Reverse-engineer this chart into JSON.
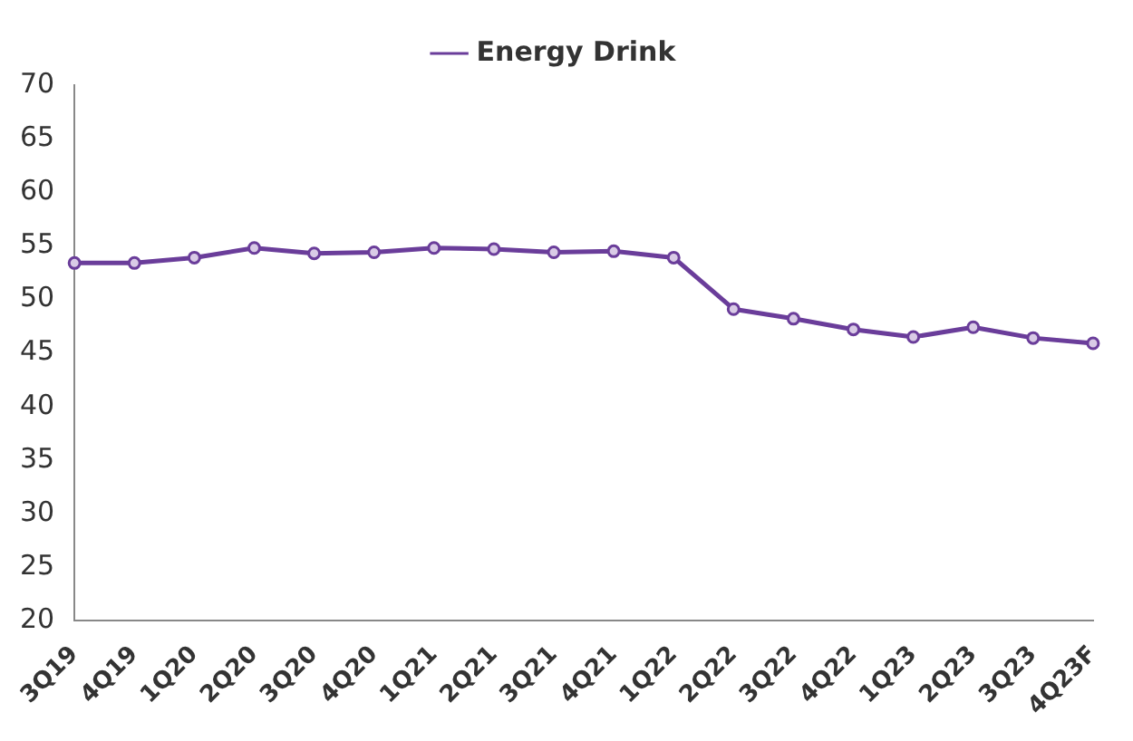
{
  "chart_data": {
    "type": "line",
    "categories": [
      "3Q19",
      "4Q19",
      "1Q20",
      "2Q20",
      "3Q20",
      "4Q20",
      "1Q21",
      "2Q21",
      "3Q21",
      "4Q21",
      "1Q22",
      "2Q22",
      "3Q22",
      "4Q22",
      "1Q23",
      "2Q23",
      "3Q23",
      "4Q23F"
    ],
    "series": [
      {
        "name": "Energy Drink",
        "color": "#6a3d9a",
        "values": [
          53.4,
          53.4,
          53.9,
          54.8,
          54.3,
          54.4,
          54.8,
          54.7,
          54.4,
          54.5,
          53.9,
          49.1,
          48.2,
          47.2,
          46.5,
          47.4,
          46.4,
          45.9
        ]
      }
    ],
    "ylim": [
      20,
      70
    ],
    "yticks": [
      20,
      25,
      30,
      35,
      40,
      45,
      50,
      55,
      60,
      65,
      70
    ],
    "grid": false,
    "legend": "top",
    "marker": "circle",
    "line_style": "solid"
  }
}
